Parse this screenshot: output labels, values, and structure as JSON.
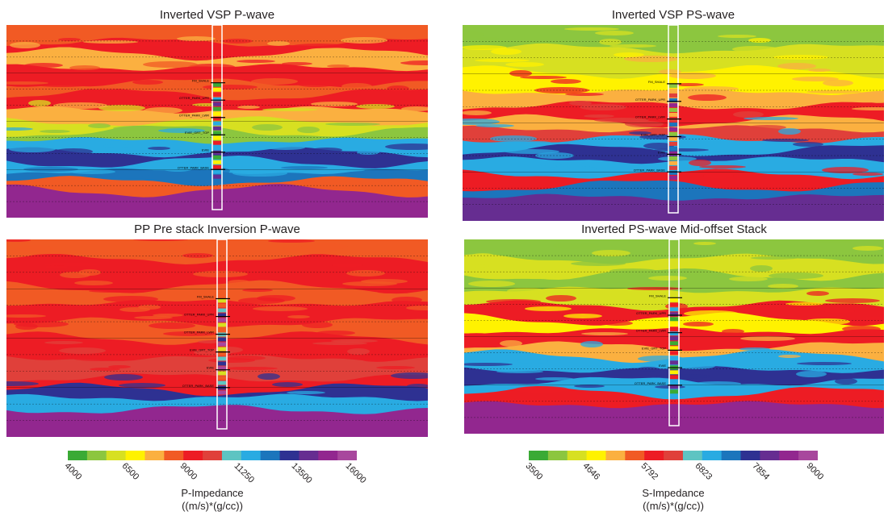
{
  "panels": [
    {
      "title": "Inverted VSP P-wave",
      "scale": "P",
      "well_tops": [
        "FM_SHALE",
        "OTTER_PARK_UPR",
        "OTTER_PARK_LWR",
        "EVIE_GRT_TOP",
        "EVIE",
        "OTTER_PARK_BASE"
      ]
    },
    {
      "title": "Inverted VSP PS-wave",
      "scale": "S",
      "well_tops": [
        "FM_SHALE",
        "OTTER_PARK_UPR",
        "OTTER_PARK_LWR",
        "EVIE_GRT_TOP",
        "EVIE",
        "OTTER_PARK_BASE"
      ]
    },
    {
      "title": "PP Pre stack Inversion P-wave",
      "scale": "P",
      "well_tops": [
        "FM_SHALE",
        "OTTER_PARK_UPR",
        "OTTER_PARK_LWR",
        "EVIE_GRT_TOP",
        "EVIE",
        "OTTER_PARK_BASE"
      ]
    },
    {
      "title": "Inverted PS-wave Mid-offset Stack",
      "scale": "S",
      "well_tops": [
        "FM_SHALE",
        "OTTER_PARK_UPR",
        "OTTER_PARK_LWR",
        "EVIE_GRT_TOP",
        "EVIE",
        "OTTER_PARK_BASE"
      ]
    }
  ],
  "colorbars": [
    {
      "name": "P-Impedance",
      "units": "((m/s)*(g/cc))",
      "ticks": [
        "4000",
        "6500",
        "9000",
        "11250",
        "13500",
        "16000"
      ]
    },
    {
      "name": "S-Impedance",
      "units": "((m/s)*(g/cc))",
      "ticks": [
        "3500",
        "4646",
        "5792",
        "6823",
        "7854",
        "9000"
      ]
    }
  ],
  "colors": [
    "#3aaa35",
    "#8cc63f",
    "#d7e021",
    "#fff200",
    "#fbb040",
    "#f15a24",
    "#ed1c24",
    "#e0403a",
    "#5ec4c2",
    "#29abe2",
    "#1c75bc",
    "#2e3192",
    "#662d91",
    "#92278f",
    "#a8479d"
  ]
}
